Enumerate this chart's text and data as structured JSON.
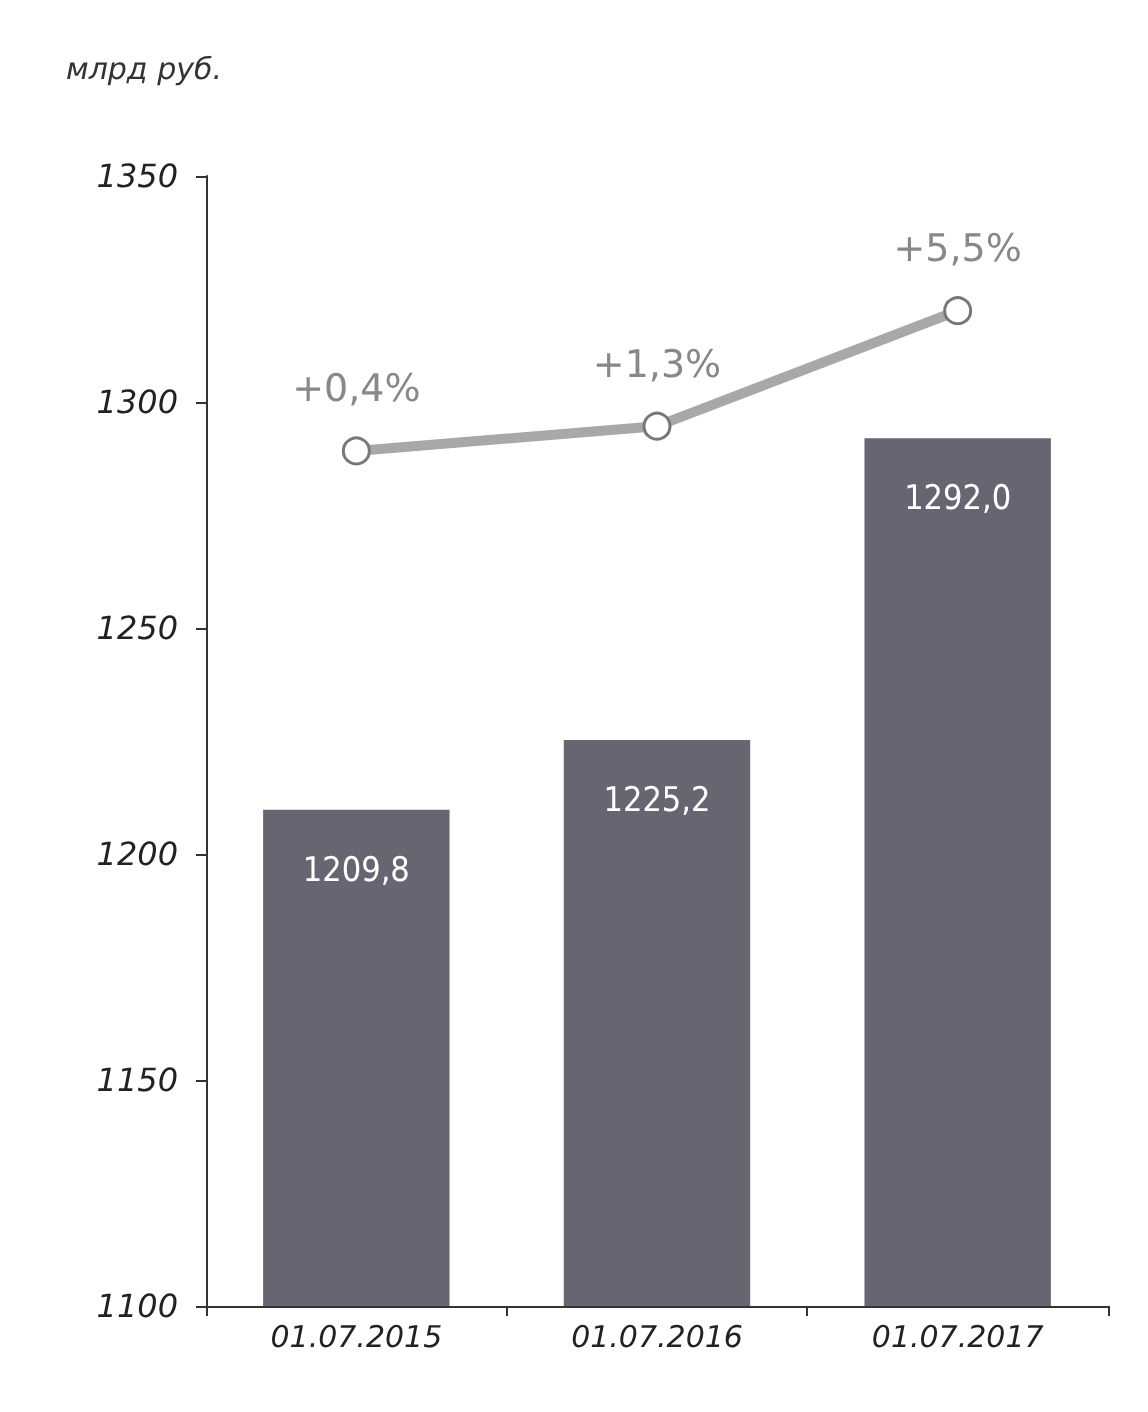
{
  "chart_data": {
    "type": "bar",
    "ylabel": "млрд руб.",
    "categories": [
      "01.07.2015",
      "01.07.2016",
      "01.07.2017"
    ],
    "series": [
      {
        "color": "#666673",
        "values": [
          1209.8,
          1225.2,
          1292.0
        ],
        "value_labels": [
          "1209,8",
          "1225,2",
          "1292,0"
        ]
      },
      {
        "type": "line",
        "axis": "y2",
        "color": "#a8a8a8",
        "values": [
          0.4,
          1.3,
          5.5
        ],
        "value_labels": [
          "+0,4%",
          "+1,3%",
          "+5,5%"
        ],
        "marker": "circle"
      }
    ],
    "ylim": [
      1100,
      1350
    ],
    "yticks": [
      1100,
      1150,
      1200,
      1250,
      1300,
      1350
    ],
    "y2lim": [
      -30.7,
      10.4
    ],
    "tick_labels": "y",
    "grid": false
  }
}
